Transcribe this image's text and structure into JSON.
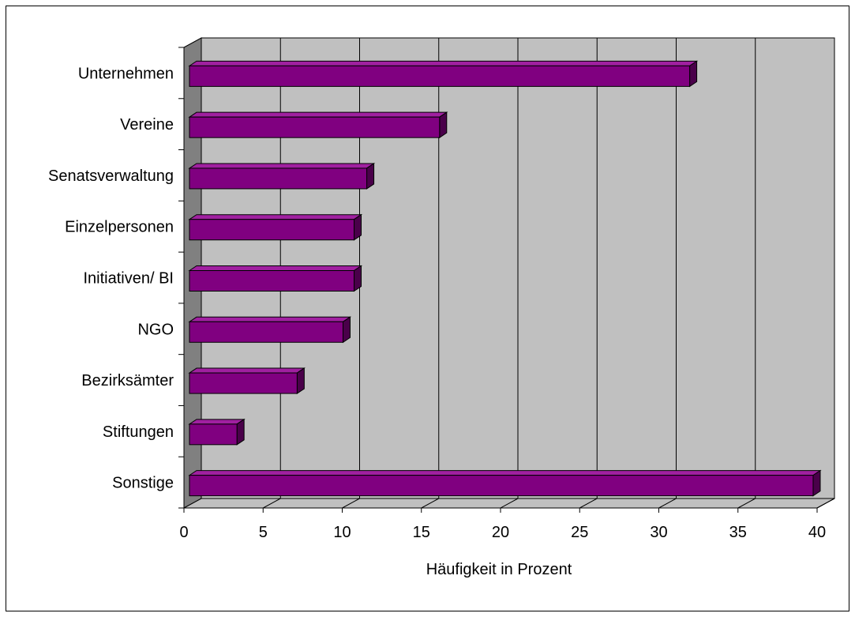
{
  "chart_data": {
    "type": "bar",
    "orientation": "horizontal",
    "style": "3d",
    "categories": [
      "Unternehmen",
      "Vereine",
      "Senatsverwaltung",
      "Einzelpersonen",
      "Initiativen/ BI",
      "NGO",
      "Bezirksämter",
      "Stiftungen",
      "Sonstige"
    ],
    "values": [
      31.6,
      15.8,
      11.2,
      10.4,
      10.4,
      9.7,
      6.8,
      3.0,
      39.4
    ],
    "xlabel": "Häufigkeit in Prozent",
    "xlim": [
      0,
      40
    ],
    "xticks": [
      "0",
      "5",
      "10",
      "15",
      "20",
      "25",
      "30",
      "35",
      "40"
    ],
    "grid": true,
    "colors": {
      "bar_front": "#800080",
      "bar_top": "#A020A0",
      "bar_side": "#4A004A",
      "back_wall": "#C0C0C0",
      "side_wall": "#808080",
      "floor": "#C0C0C0"
    }
  }
}
